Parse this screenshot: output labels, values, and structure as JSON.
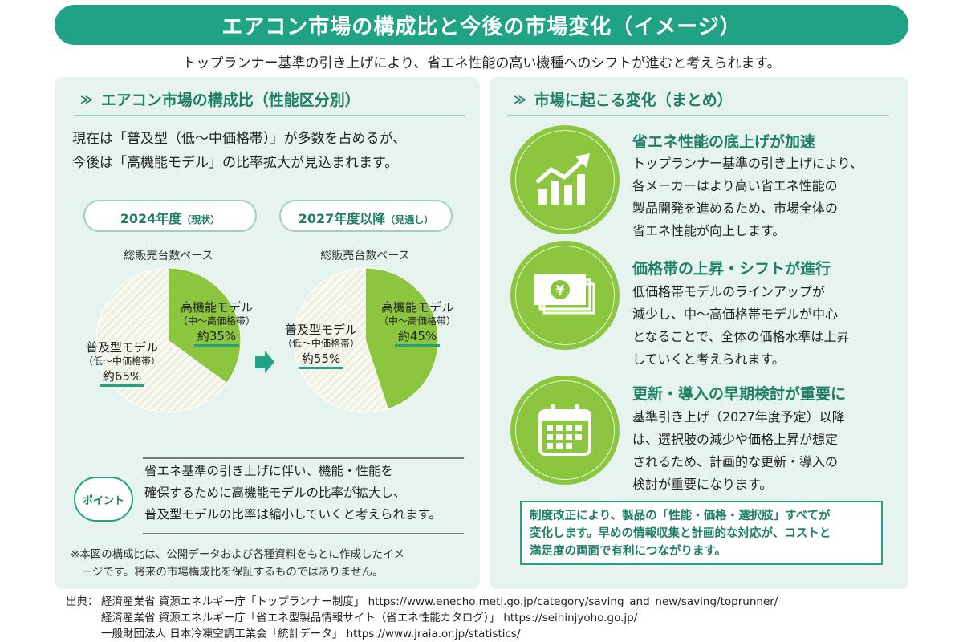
{
  "title": "エアコン市場の構成比と今後の市場変化（イメージ）",
  "subtitle": "トップランナー基準の引き上げにより、省エネ性能の高い機種へのシフトが進むと考えられます。",
  "left": {
    "heading": "エアコン市場の構成比（性能区分別）",
    "intro_1": "現在は「普及型（低〜中価格帯）」が多数を占めるが、",
    "intro_2": "今後は「高機能モデル」の比率拡大が見込まれます。",
    "year_2024": "2024年度",
    "year_2024_note": "（現状）",
    "year_2027": "2027年度以降",
    "year_2027_note": "（見通し）",
    "base_label_1": "総販売台数ベース",
    "base_label_2": "総販売台数ベース",
    "point_badge": "ポイント",
    "point_1": "省エネ基準の引き上げに伴い、機能・性能を",
    "point_2": "確保するために高機能モデルの比率が拡大し、",
    "point_3": "普及型モデルの比率は縮小していくと考えられます。",
    "note_1": "※本図の構成比は、公開データおよび各種資料をもとに作成したイメ",
    "note_2": "　ージです。将来の市場構成比を保証するものではありません。"
  },
  "chart_data": [
    {
      "type": "pie",
      "title": "2024年度（現状）",
      "subtitle": "総販売台数ベース",
      "slices": [
        {
          "label": "高機能モデル",
          "sub": "（中〜高価格帯）",
          "value": 35,
          "value_label": "約35%",
          "color": "#8cc63f"
        },
        {
          "label": "普及型モデル",
          "sub": "（低〜中価格帯）",
          "value": 65,
          "value_label": "約65%",
          "color": "#f7f8f0"
        }
      ]
    },
    {
      "type": "pie",
      "title": "2027年度以降（見通し）",
      "subtitle": "総販売台数ベース",
      "slices": [
        {
          "label": "高機能モデル",
          "sub": "（中〜高価格帯）",
          "value": 45,
          "value_label": "約45%",
          "color": "#8cc63f"
        },
        {
          "label": "普及型モデル",
          "sub": "（低〜中価格帯）",
          "value": 55,
          "value_label": "約55%",
          "color": "#f7f8f0"
        }
      ]
    }
  ],
  "right": {
    "heading": "市場に起こる変化（まとめ）",
    "items": [
      {
        "icon": "growth-chart-icon",
        "head": "省エネ性能の底上げが加速",
        "lines": [
          "トップランナー基準の引き上げにより、",
          "各メーカーはより高い省エネ性能の",
          "製品開発を進めるため、市場全体の",
          "省エネ性能が向上します。"
        ]
      },
      {
        "icon": "yen-bills-icon",
        "head": "価格帯の上昇・シフトが進行",
        "lines": [
          "低価格帯モデルのラインアップが",
          "減少し、中〜高価格帯モデルが中心",
          "となることで、全体の価格水準は上昇",
          "していくと考えられます。"
        ]
      },
      {
        "icon": "calendar-icon",
        "head": "更新・導入の早期検討が重要に",
        "lines": [
          "基準引き上げ（2027年度予定）以降",
          "は、選択肢の減少や価格上昇が想定",
          "されるため、計画的な更新・導入の",
          "検討が重要になります。"
        ]
      }
    ],
    "summary_1": "制度改正により、製品の「性能・価格・選択肢」すべてが",
    "summary_2": "変化します。早めの情報収集と計画的な対応が、コストと",
    "summary_3": "満足度の両面で有利につながります。"
  },
  "source": {
    "label": "出典：",
    "lines": [
      "経済産業省 資源エネルギー庁「トップランナー制度」 https://www.enecho.meti.go.jp/category/saving_and_new/saving/toprunner/",
      "経済産業省 資源エネルギー庁「省エネ型製品情報サイト（省エネ性能カタログ）」 https://seihinjyoho.go.jp/",
      "一般財団法人 日本冷凍空調工業会「統計データ」 https://www.jraia.or.jp/statistics/"
    ]
  },
  "colors": {
    "brand_green": "#1fa384",
    "dark_green": "#1e7f66",
    "lime": "#8cc63f",
    "panel_bg": "#e6f3ee"
  }
}
